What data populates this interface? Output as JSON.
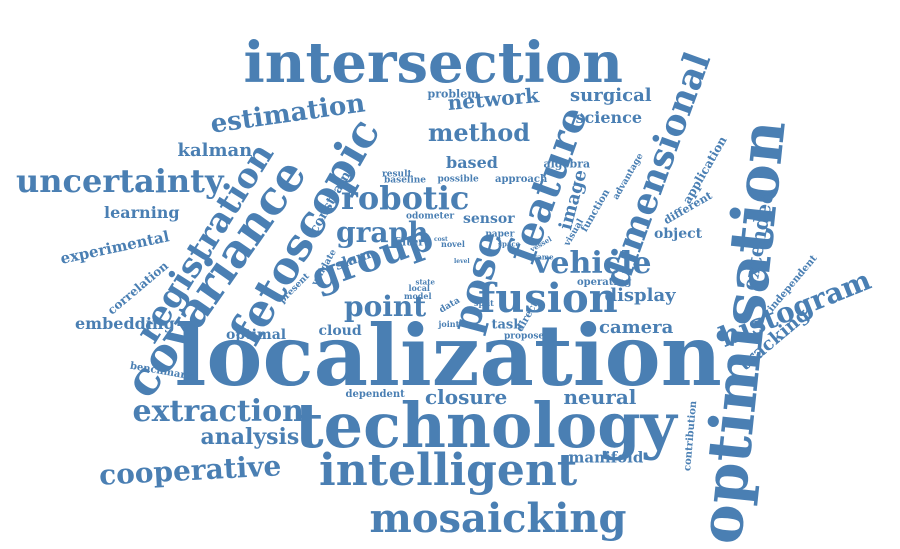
{
  "color": "#4a7fb3",
  "words": [
    {
      "text": "localization",
      "rot": 0
    },
    {
      "text": "optimisation",
      "rot": -84
    },
    {
      "text": "technology",
      "rot": 0
    },
    {
      "text": "intersection",
      "rot": 0
    },
    {
      "text": "intelligent",
      "rot": 0
    },
    {
      "text": "mosaicking",
      "rot": 0
    },
    {
      "text": "covariance",
      "rot": -55
    },
    {
      "text": "fetoscopic",
      "rot": -60
    },
    {
      "text": "pose",
      "rot": -75
    },
    {
      "text": "feature",
      "rot": -70
    },
    {
      "text": "group",
      "rot": -20
    },
    {
      "text": "fusion",
      "rot": 0
    },
    {
      "text": "registration",
      "rot": -58
    },
    {
      "text": "dimensional",
      "rot": -70
    },
    {
      "text": "uncertainty",
      "rot": 0
    },
    {
      "text": "extraction",
      "rot": 0
    },
    {
      "text": "cooperative",
      "rot": -3
    },
    {
      "text": "estimation",
      "rot": -8
    },
    {
      "text": "robotic",
      "rot": 0
    },
    {
      "text": "vehicle",
      "rot": 0
    },
    {
      "text": "histogram",
      "rot": -22
    },
    {
      "text": "graph",
      "rot": 0
    },
    {
      "text": "point",
      "rot": 0
    },
    {
      "text": "method",
      "rot": 0
    },
    {
      "text": "network",
      "rot": -5
    },
    {
      "text": "analysis",
      "rot": 0
    },
    {
      "text": "neural",
      "rot": 0
    },
    {
      "text": "closure",
      "rot": 0
    },
    {
      "text": "camera",
      "rot": 0
    },
    {
      "text": "display",
      "rot": 0
    },
    {
      "text": "extended",
      "rot": -80
    },
    {
      "text": "tracking",
      "rot": -40
    },
    {
      "text": "surgical",
      "rot": 0
    },
    {
      "text": "science",
      "rot": 0
    },
    {
      "text": "based",
      "rot": 0
    },
    {
      "text": "image",
      "rot": -75
    },
    {
      "text": "kalman",
      "rot": 0
    },
    {
      "text": "learning",
      "rot": 0
    },
    {
      "text": "experimental",
      "rot": -12
    },
    {
      "text": "embedding",
      "rot": 0
    },
    {
      "text": "optimal",
      "rot": 0
    },
    {
      "text": "cloud",
      "rot": 0
    },
    {
      "text": "constraint",
      "rot": -60
    },
    {
      "text": "sensor",
      "rot": 0
    },
    {
      "text": "manifold",
      "rot": 0
    },
    {
      "text": "object",
      "rot": 0
    },
    {
      "text": "correlation",
      "rot": -40
    },
    {
      "text": "application",
      "rot": -60
    },
    {
      "text": "slam",
      "rot": -20
    },
    {
      "text": "task",
      "rot": 0
    },
    {
      "text": "dependent",
      "rot": 0
    },
    {
      "text": "benchmark",
      "rot": 10
    },
    {
      "text": "problem",
      "rot": 0
    },
    {
      "text": "different",
      "rot": -30
    },
    {
      "text": "independent",
      "rot": -50
    },
    {
      "text": "contribution",
      "rot": -85
    },
    {
      "text": "algebra",
      "rot": 0
    },
    {
      "text": "approach",
      "rot": 0
    },
    {
      "text": "possible",
      "rot": 0
    },
    {
      "text": "baseline",
      "rot": 0
    },
    {
      "text": "odometer",
      "rot": 0
    },
    {
      "text": "filter",
      "rot": 0
    },
    {
      "text": "paper",
      "rot": 0
    },
    {
      "text": "space",
      "rot": 0
    },
    {
      "text": "visual",
      "rot": -60
    },
    {
      "text": "function",
      "rot": -60
    },
    {
      "text": "advantage",
      "rot": -60
    },
    {
      "text": "operating",
      "rot": 0
    },
    {
      "text": "propose",
      "rot": 0
    },
    {
      "text": "direct",
      "rot": -60
    },
    {
      "text": "joint",
      "rot": 0
    },
    {
      "text": "data",
      "rot": -30
    },
    {
      "text": "split",
      "rot": 0
    },
    {
      "text": "model",
      "rot": 0
    },
    {
      "text": "local",
      "rot": 0
    },
    {
      "text": "state",
      "rot": 0
    },
    {
      "text": "result",
      "rot": 0
    },
    {
      "text": "validate",
      "rot": -60
    },
    {
      "text": "present",
      "rot": -45
    },
    {
      "text": "novel",
      "rot": 0
    },
    {
      "text": "frame",
      "rot": 0
    },
    {
      "text": "cost",
      "rot": 0
    },
    {
      "text": "level",
      "rot": 0
    },
    {
      "text": "vessel",
      "rot": -30
    }
  ]
}
